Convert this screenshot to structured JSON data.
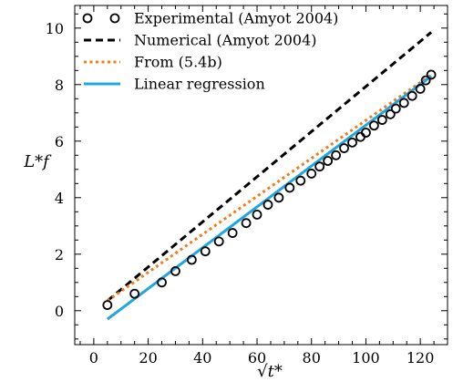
{
  "chart_data": {
    "type": "line",
    "title": "",
    "xlabel": "√t*",
    "ylabel": "L*f",
    "xlim": [
      -7,
      130
    ],
    "ylim": [
      -1.2,
      10.8
    ],
    "xticks": [
      0,
      20,
      40,
      60,
      80,
      100,
      120
    ],
    "yticks": [
      0,
      2,
      4,
      6,
      8,
      10
    ],
    "grid": false,
    "legend_position": "top-left",
    "series": [
      {
        "name": "Experimental (Amyot 2004)",
        "kind": "scatter",
        "color": "#000000",
        "x": [
          5,
          15,
          25,
          30,
          36,
          41,
          46,
          51,
          56,
          60,
          64,
          68,
          72,
          76,
          80,
          83,
          86,
          89,
          92,
          95,
          98,
          100,
          103,
          106,
          109,
          111,
          114,
          117,
          120,
          122,
          124
        ],
        "y": [
          0.2,
          0.6,
          1.0,
          1.4,
          1.8,
          2.1,
          2.45,
          2.75,
          3.1,
          3.4,
          3.75,
          4.0,
          4.35,
          4.6,
          4.85,
          5.1,
          5.3,
          5.5,
          5.75,
          5.95,
          6.15,
          6.3,
          6.55,
          6.75,
          6.95,
          7.15,
          7.35,
          7.6,
          7.85,
          8.15,
          8.35
        ]
      },
      {
        "name": "Numerical (Amyot 2004)",
        "kind": "line",
        "dash": "dashed",
        "color": "#000000",
        "x": [
          5,
          124
        ],
        "y": [
          0.35,
          9.85
        ]
      },
      {
        "name": "From (5.4b)",
        "kind": "line",
        "dash": "dotted",
        "color": "#f07d1a",
        "x": [
          5,
          124
        ],
        "y": [
          0.35,
          8.35
        ]
      },
      {
        "name": "Linear regression",
        "kind": "line",
        "dash": "solid",
        "color": "#1ea7df",
        "x": [
          5,
          124
        ],
        "y": [
          -0.3,
          8.3
        ]
      }
    ]
  }
}
